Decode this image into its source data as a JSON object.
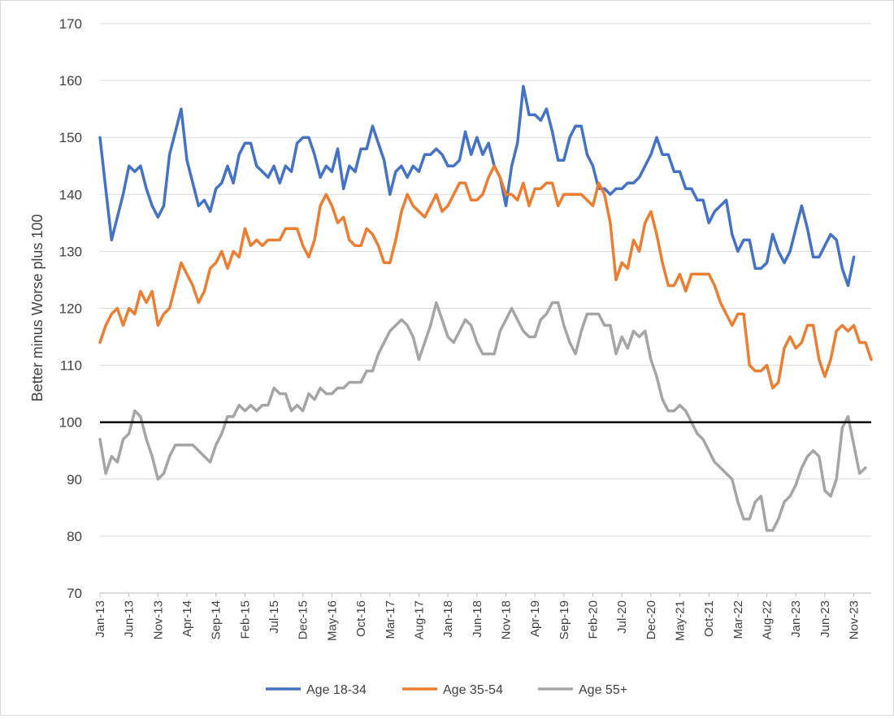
{
  "chart_data": {
    "type": "line",
    "title": "",
    "xlabel": "",
    "ylabel": "Better minus Worse plus 100",
    "ylim": [
      70,
      170
    ],
    "yticks": [
      70,
      80,
      90,
      100,
      110,
      120,
      130,
      140,
      150,
      160,
      170
    ],
    "x_tick_labels": [
      "Jan-13",
      "Jun-13",
      "Nov-13",
      "Apr-14",
      "Sep-14",
      "Feb-15",
      "Jul-15",
      "Dec-15",
      "May-16",
      "Oct-16",
      "Mar-17",
      "Aug-17",
      "Jan-18",
      "Jun-18",
      "Nov-18",
      "Apr-19",
      "Sep-19",
      "Feb-20",
      "Jul-20",
      "Dec-20",
      "May-21",
      "Oct-21",
      "Mar-22",
      "Aug-22",
      "Jan-23",
      "Jun-23",
      "Nov-23"
    ],
    "x_start": "Jan-13",
    "x_frequency": "monthly",
    "reference_line": {
      "y": 100,
      "color": "#000000"
    },
    "grid": true,
    "legend_position": "bottom",
    "series": [
      {
        "name": "Age 18-34",
        "color": "#4472c4",
        "values": [
          150,
          141,
          132,
          136,
          140,
          145,
          144,
          145,
          141,
          138,
          136,
          138,
          147,
          151,
          155,
          146,
          142,
          138,
          139,
          137,
          141,
          142,
          145,
          142,
          147,
          149,
          149,
          145,
          144,
          143,
          145,
          142,
          145,
          144,
          149,
          150,
          150,
          147,
          143,
          145,
          144,
          148,
          141,
          145,
          144,
          148,
          148,
          152,
          149,
          146,
          140,
          144,
          145,
          143,
          145,
          144,
          147,
          147,
          148,
          147,
          145,
          145,
          146,
          151,
          147,
          150,
          147,
          149,
          145,
          143,
          138,
          145,
          149,
          159,
          154,
          154,
          153,
          155,
          151,
          146,
          146,
          150,
          152,
          152,
          147,
          145,
          141,
          141,
          140,
          141,
          141,
          142,
          142,
          143,
          145,
          147,
          150,
          147,
          147,
          144,
          144,
          141,
          141,
          139,
          139,
          135,
          137,
          138,
          139,
          133,
          130,
          132,
          132,
          127,
          127,
          128,
          133,
          130,
          128,
          130,
          134,
          138,
          134,
          129,
          129,
          131,
          133,
          132,
          127,
          124,
          129
        ]
      },
      {
        "name": "Age 35-54",
        "color": "#ed7d31",
        "values": [
          114,
          117,
          119,
          120,
          117,
          120,
          119,
          123,
          121,
          123,
          117,
          119,
          120,
          124,
          128,
          126,
          124,
          121,
          123,
          127,
          128,
          130,
          127,
          130,
          129,
          134,
          131,
          132,
          131,
          132,
          132,
          132,
          134,
          134,
          134,
          131,
          129,
          132,
          138,
          140,
          138,
          135,
          136,
          132,
          131,
          131,
          134,
          133,
          131,
          128,
          128,
          132,
          137,
          140,
          138,
          137,
          136,
          138,
          140,
          137,
          138,
          140,
          142,
          142,
          139,
          139,
          140,
          143,
          145,
          143,
          140,
          140,
          139,
          142,
          138,
          141,
          141,
          142,
          142,
          138,
          140,
          140,
          140,
          140,
          139,
          138,
          142,
          140,
          135,
          125,
          128,
          127,
          132,
          130,
          135,
          137,
          133,
          128,
          124,
          124,
          126,
          123,
          126,
          126,
          126,
          126,
          124,
          121,
          119,
          117,
          119,
          119,
          110,
          109,
          109,
          110,
          106,
          107,
          113,
          115,
          113,
          114,
          117,
          117,
          111,
          108,
          111,
          116,
          117,
          116,
          117,
          114,
          114,
          111
        ]
      },
      {
        "name": "Age 55+",
        "color": "#a5a5a5",
        "values": [
          97,
          91,
          94,
          93,
          97,
          98,
          102,
          101,
          97,
          94,
          90,
          91,
          94,
          96,
          96,
          96,
          96,
          95,
          94,
          93,
          96,
          98,
          101,
          101,
          103,
          102,
          103,
          102,
          103,
          103,
          106,
          105,
          105,
          102,
          103,
          102,
          105,
          104,
          106,
          105,
          105,
          106,
          106,
          107,
          107,
          107,
          109,
          109,
          112,
          114,
          116,
          117,
          118,
          117,
          115,
          111,
          114,
          117,
          121,
          118,
          115,
          114,
          116,
          118,
          117,
          114,
          112,
          112,
          112,
          116,
          118,
          120,
          118,
          116,
          115,
          115,
          118,
          119,
          121,
          121,
          117,
          114,
          112,
          116,
          119,
          119,
          119,
          117,
          117,
          112,
          115,
          113,
          116,
          115,
          116,
          111,
          108,
          104,
          102,
          102,
          103,
          102,
          100,
          98,
          97,
          95,
          93,
          92,
          91,
          90,
          86,
          83,
          83,
          86,
          87,
          81,
          81,
          83,
          86,
          87,
          89,
          92,
          94,
          95,
          94,
          88,
          87,
          90,
          99,
          101,
          96,
          91,
          92
        ]
      }
    ]
  }
}
